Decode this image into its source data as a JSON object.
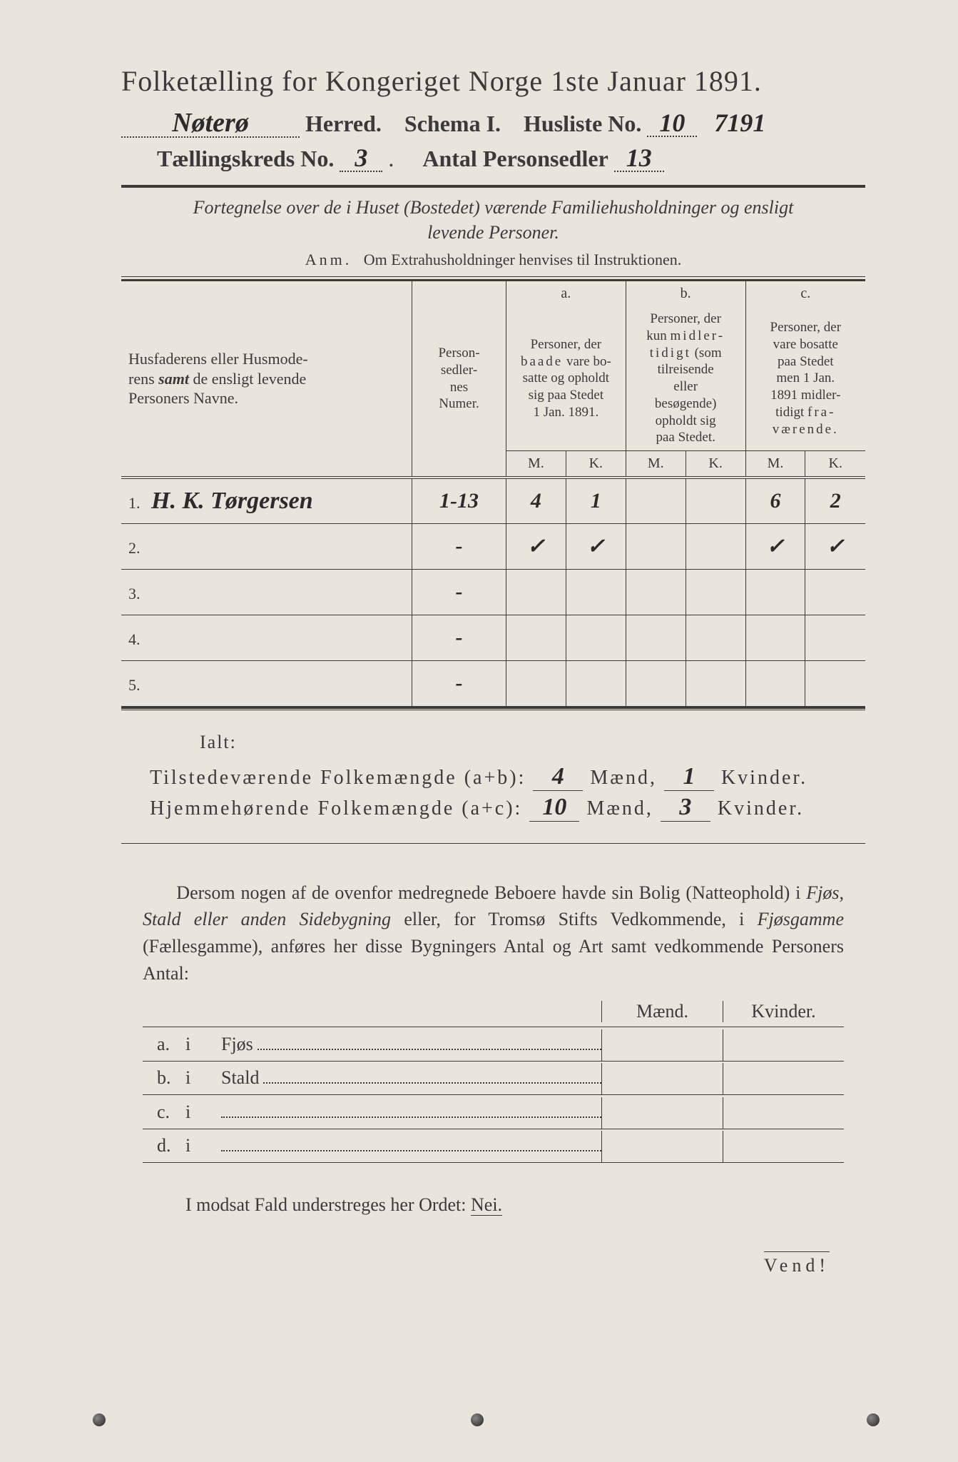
{
  "background": "#e8e6dc",
  "text_color": "#3a3a3a",
  "title": "Folketælling for Kongeriget Norge 1ste Januar 1891.",
  "header": {
    "herred_hw": "Nøterø",
    "herred_label": "Herred.",
    "schema_label": "Schema I.",
    "husliste_label": "Husliste No.",
    "husliste_hw": "10",
    "side_hw": "7191",
    "kreds_label": "Tællingskreds No.",
    "kreds_hw": "3",
    "antal_label": "Antal Personsedler",
    "antal_hw": "13"
  },
  "subhead": "Fortegnelse over de i Huset (Bostedet) værende Familiehusholdninger og ensligt levende Personer.",
  "anm_label": "Anm.",
  "anm_text": "Om Extrahusholdninger henvises til Instruktionen.",
  "table": {
    "col_name": "Husfaderens eller Husmoderens samt de ensligt levende Personers Navne.",
    "col_num": "Person-sedler-nes Numer.",
    "a": "a.",
    "a_desc": "Personer, der baade vare bosatte og opholdt sig paa Stedet 1 Jan. 1891.",
    "b": "b.",
    "b_desc": "Personer, der kun midlertidigt (som tilreisende eller besøgende) opholdt sig paa Stedet.",
    "c": "c.",
    "c_desc": "Personer, der vare bosatte paa Stedet men 1 Jan. 1891 midlertidigt fraværende.",
    "M": "M.",
    "K": "K.",
    "rows": [
      {
        "n": "1.",
        "name": "H. K. Tørgersen",
        "num": "1-13",
        "aM": "4",
        "aK": "1",
        "bM": "",
        "bK": "",
        "cM": "6",
        "cK": "2"
      },
      {
        "n": "2.",
        "name": "",
        "num": "-",
        "aM": "✓",
        "aK": "✓",
        "bM": "",
        "bK": "",
        "cM": "✓",
        "cK": "✓"
      },
      {
        "n": "3.",
        "name": "",
        "num": "-",
        "aM": "",
        "aK": "",
        "bM": "",
        "bK": "",
        "cM": "",
        "cK": ""
      },
      {
        "n": "4.",
        "name": "",
        "num": "-",
        "aM": "",
        "aK": "",
        "bM": "",
        "bK": "",
        "cM": "",
        "cK": ""
      },
      {
        "n": "5.",
        "name": "",
        "num": "-",
        "aM": "",
        "aK": "",
        "bM": "",
        "bK": "",
        "cM": "",
        "cK": ""
      }
    ]
  },
  "ialt": "Ialt:",
  "sum1_label": "Tilstedeværende Folkemængde (a+b):",
  "sum2_label": "Hjemmehørende Folkemængde (a+c):",
  "maend": "Mænd,",
  "kvinder": "Kvinder.",
  "sum1_m": "4",
  "sum1_k": "1",
  "sum2_m": "10",
  "sum2_k": "3",
  "para": "Dersom nogen af de ovenfor medregnede Beboere havde sin Bolig (Natteophold) i Fjøs, Stald eller anden Sidebygning eller, for Tromsø Stifts Vedkommende, i Fjøsgamme (Fællesgamme), anføres her disse Bygningers Antal og Art samt vedkommende Personers Antal:",
  "mk_maend": "Mænd.",
  "mk_kvinder": "Kvinder.",
  "list": {
    "i": "i",
    "a": "a.",
    "b": "b.",
    "c": "c.",
    "d": "d.",
    "fjos": "Fjøs",
    "stald": "Stald"
  },
  "modsat": "I modsat Fald understreges her Ordet:",
  "nei": "Nei.",
  "vend": "Vend!"
}
